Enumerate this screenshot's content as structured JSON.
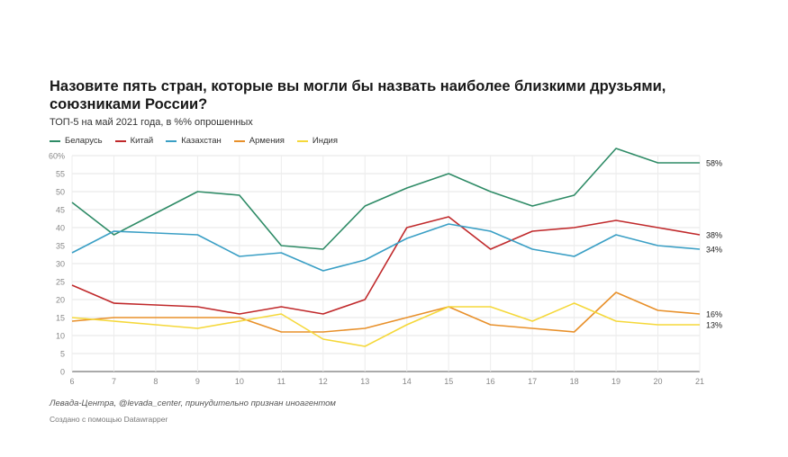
{
  "title": "Назовите пять стран, которые вы могли бы назвать наиболее близкими друзьями, союзниками России?",
  "subtitle": "ТОП-5 на май 2021 года, в %% опрошенных",
  "source": "Левада-Центра, @levada_center, принудительно признан иноагентом",
  "credit": "Создано с помощью Datawrapper",
  "chart_data": {
    "type": "line",
    "x": [
      6,
      7,
      8,
      9,
      10,
      11,
      12,
      13,
      14,
      15,
      16,
      17,
      18,
      19,
      20,
      21
    ],
    "x_tick_labels": [
      "6",
      "7",
      "8",
      "9",
      "10",
      "11",
      "12",
      "13",
      "14",
      "15",
      "16",
      "17",
      "18",
      "19",
      "20",
      "21"
    ],
    "ylim": [
      0,
      60
    ],
    "y_ticks": [
      0,
      5,
      10,
      15,
      20,
      25,
      30,
      35,
      40,
      45,
      50,
      55,
      60
    ],
    "y_tick_labels": [
      "0",
      "5",
      "10",
      "15",
      "20",
      "25",
      "30",
      "35",
      "40",
      "45",
      "50",
      "55",
      "60%"
    ],
    "grid": true,
    "legend_placement": "top-left",
    "series": [
      {
        "name": "Беларусь",
        "color": "#2e8b66",
        "values": [
          47,
          38,
          44,
          50,
          49,
          35,
          34,
          46,
          51,
          55,
          50,
          46,
          49,
          62,
          58,
          58
        ],
        "end_label": "58%"
      },
      {
        "name": "Китай",
        "color": "#c0292b",
        "values": [
          24,
          19,
          18.5,
          18,
          16,
          18,
          16,
          20,
          40,
          43,
          34,
          39,
          40,
          42,
          40,
          38
        ],
        "end_label": "38%"
      },
      {
        "name": "Казахстан",
        "color": "#3a9fc5",
        "values": [
          33,
          39,
          38.5,
          38,
          32,
          33,
          28,
          31,
          37,
          41,
          39,
          34,
          32,
          38,
          35,
          34
        ],
        "end_label": "34%"
      },
      {
        "name": "Армения",
        "color": "#e8902a",
        "values": [
          14,
          15,
          15,
          15,
          15,
          11,
          11,
          12,
          15,
          18,
          13,
          12,
          11,
          22,
          17,
          16
        ],
        "end_label": "16%"
      },
      {
        "name": "Индия",
        "color": "#f5d83a",
        "values": [
          15,
          14,
          13,
          12,
          14,
          16,
          9,
          7,
          13,
          18,
          18,
          14,
          19,
          14,
          13,
          13
        ],
        "end_label": "13%"
      }
    ]
  }
}
